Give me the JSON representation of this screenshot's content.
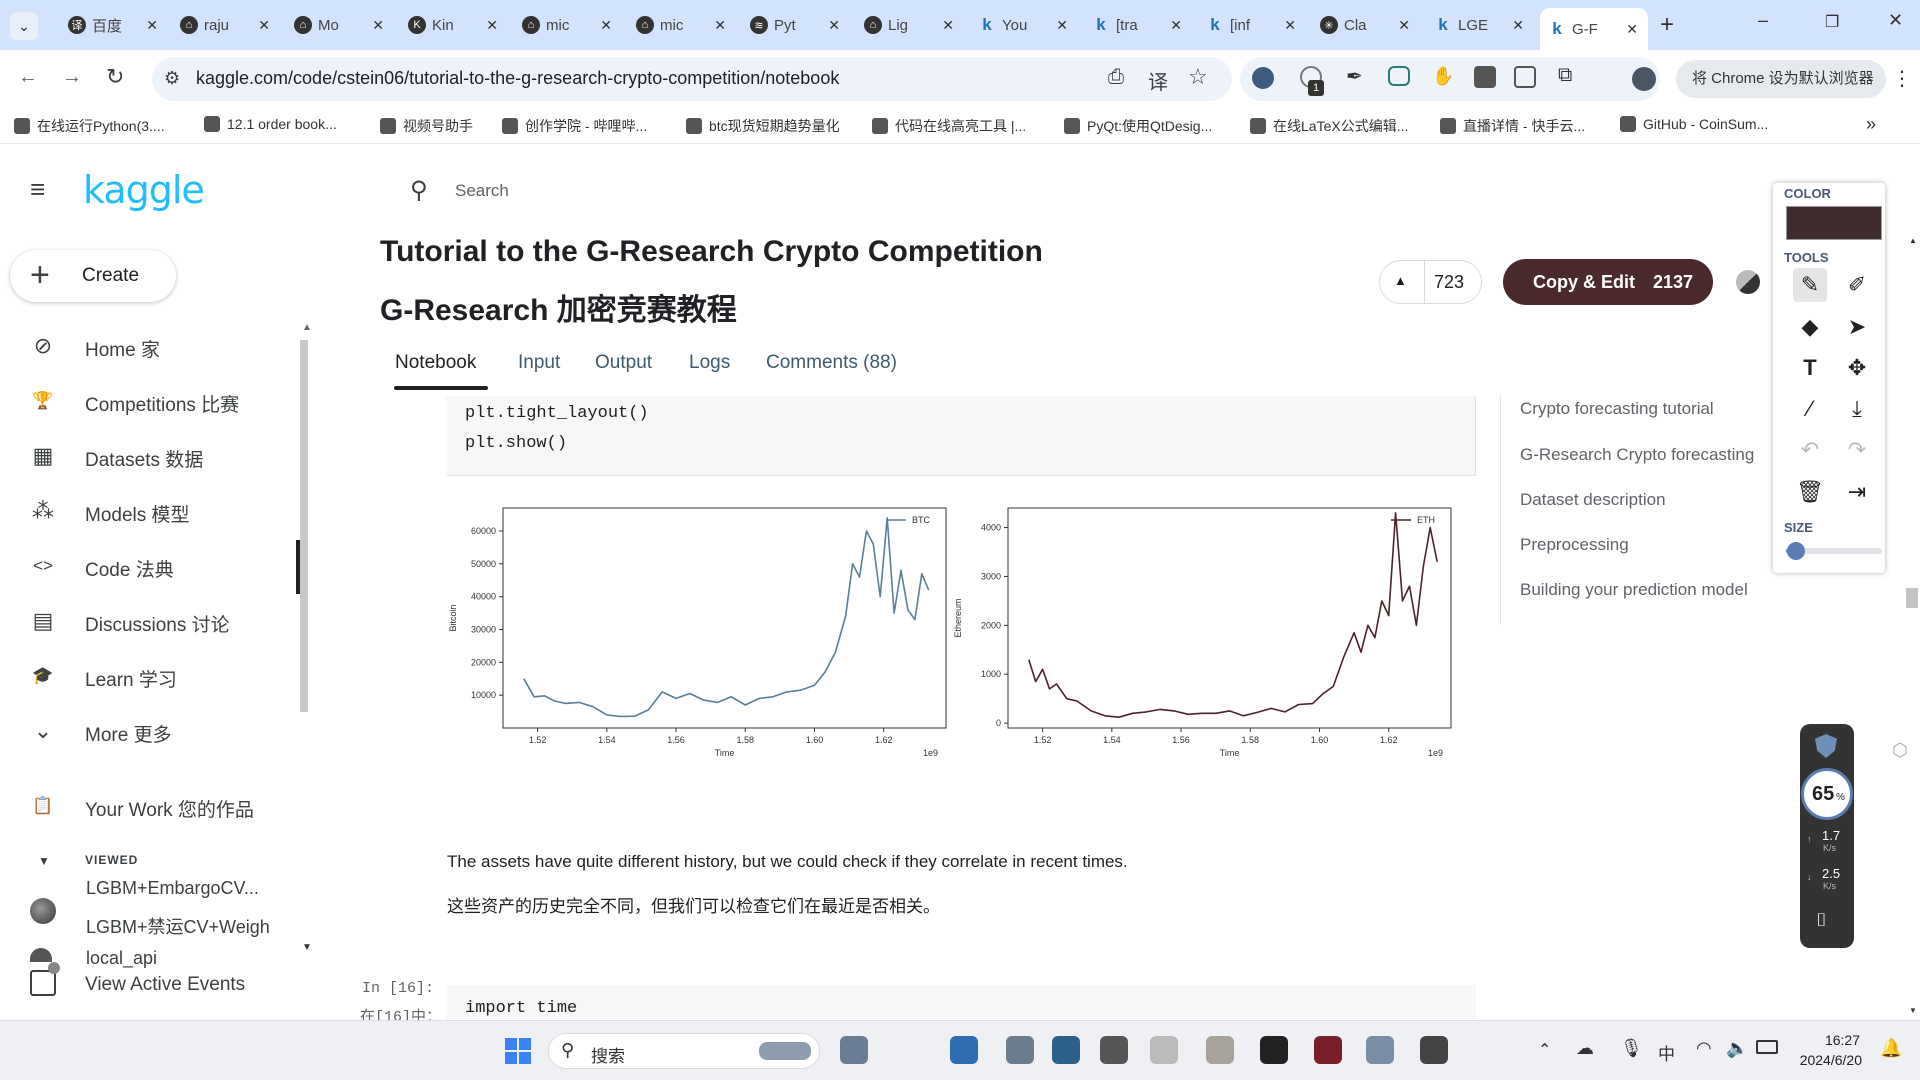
{
  "tabs": [
    {
      "label": "百度",
      "x": 60,
      "fav": "译"
    },
    {
      "label": "raju",
      "x": 172,
      "fav": "⌂"
    },
    {
      "label": "Mo",
      "x": 286,
      "fav": "⌂"
    },
    {
      "label": "Kin",
      "x": 400,
      "fav": "K"
    },
    {
      "label": "mic",
      "x": 514,
      "fav": "⌂"
    },
    {
      "label": "mic",
      "x": 628,
      "fav": "⌂"
    },
    {
      "label": "Pyt",
      "x": 742,
      "fav": "≋"
    },
    {
      "label": "Lig",
      "x": 856,
      "fav": "⌂"
    },
    {
      "label": "You",
      "x": 970,
      "fav": "k"
    },
    {
      "label": "[tra",
      "x": 1084,
      "fav": "k"
    },
    {
      "label": "[inf",
      "x": 1198,
      "fav": "k"
    },
    {
      "label": "Cla",
      "x": 1312,
      "fav": "✳"
    },
    {
      "label": "LGE",
      "x": 1426,
      "fav": "k"
    },
    {
      "label": "G-F",
      "x": 1540,
      "fav": "k",
      "active": true
    }
  ],
  "browser": {
    "url": "kaggle.com/code/cstein06/tutorial-to-the-g-research-crypto-competition/notebook",
    "default_browser": "将 Chrome 设为默认浏览器",
    "ext_badge": "1"
  },
  "bookmarks": [
    {
      "label": "在线运行Python(3....",
      "x": 14
    },
    {
      "label": "12.1 order book...",
      "x": 204
    },
    {
      "label": "视频号助手",
      "x": 380
    },
    {
      "label": "创作学院 - 哔哩哔...",
      "x": 502
    },
    {
      "label": "btc现货短期趋势量化",
      "x": 686
    },
    {
      "label": "代码在线高亮工具 |...",
      "x": 872
    },
    {
      "label": "PyQt:使用QtDesig...",
      "x": 1064
    },
    {
      "label": "在线LaTeX公式编辑...",
      "x": 1250
    },
    {
      "label": "直播详情 - 快手云...",
      "x": 1440
    },
    {
      "label": "GitHub - CoinSum...",
      "x": 1620
    }
  ],
  "kaggle": {
    "logo": "kaggle",
    "search_placeholder": "Search",
    "create": "Create"
  },
  "nav": [
    {
      "label": "Home 家",
      "icon": "⊘",
      "y": 346
    },
    {
      "label": "Competitions 比赛",
      "icon": "🏆",
      "y": 401
    },
    {
      "label": "Datasets 数据",
      "icon": "▦",
      "y": 456
    },
    {
      "label": "Models 模型",
      "icon": "⁂",
      "y": 511
    },
    {
      "label": "Code 法典",
      "icon": "<>",
      "y": 566
    },
    {
      "label": "Discussions 讨论",
      "icon": "▤",
      "y": 621
    },
    {
      "label": "Learn 学习",
      "icon": "🎓",
      "y": 676
    },
    {
      "label": "More 更多",
      "icon": "⌄",
      "y": 731
    },
    {
      "label": "Your Work 您的作品",
      "icon": "📋",
      "y": 806
    }
  ],
  "viewed": {
    "heading": "VIEWED",
    "items": [
      "LGBM+EmbargoCV...",
      "LGBM+禁运CV+Weigh",
      "local_api"
    ]
  },
  "view_active_events": "View Active Events",
  "notebook": {
    "title": "Tutorial to the G-Research Crypto Competition",
    "title_cn": "G-Research 加密竞赛教程",
    "upvotes": "723",
    "copy_edit": "Copy & Edit",
    "copy_count": "2137",
    "tabs": [
      "Notebook",
      "Input",
      "Output",
      "Logs",
      "Comments (88)"
    ],
    "code_lines": [
      "plt.tight_layout()",
      "plt.show()"
    ],
    "text_en": "The assets have quite different history, but we could check if they correlate in recent times.",
    "text_cn": "这些资产的历史完全不同，但我们可以检查它们在最近是否相关。",
    "prompt_en": "In [16]:",
    "prompt_cn": "在[16]中：",
    "next_code": "import time"
  },
  "toc": [
    "Crypto forecasting tutorial",
    "G-Research Crypto forecasting",
    "Dataset description",
    "Preprocessing",
    "Building your prediction model"
  ],
  "annot_panel": {
    "color_label": "COLOR",
    "tools_label": "TOOLS",
    "size_label": "SIZE",
    "color": "#3f2d2f",
    "size_fraction": 0.1
  },
  "net_widget": {
    "percent": "65",
    "pct_sign": "%",
    "up": "1.7",
    "down": "2.5",
    "unit": "K/s"
  },
  "taskbar": {
    "search": "搜索",
    "time": "16:27",
    "date": "2024/6/20",
    "ime": "中"
  },
  "chart_data": [
    {
      "type": "line",
      "legend": "BTC",
      "xlabel": "Time",
      "ylabel": "Bitcoin",
      "x_exponent": "1e9",
      "color": "#5b7f95",
      "xticks": [
        "1.52",
        "1.54",
        "1.56",
        "1.58",
        "1.60",
        "1.62"
      ],
      "xlim": [
        1.51,
        1.638
      ],
      "yticks": [
        "10000",
        "20000",
        "30000",
        "40000",
        "50000",
        "60000"
      ],
      "ylim": [
        0,
        67000
      ],
      "x": [
        1.516,
        1.519,
        1.522,
        1.525,
        1.528,
        1.532,
        1.536,
        1.54,
        1.544,
        1.548,
        1.552,
        1.556,
        1.56,
        1.564,
        1.568,
        1.572,
        1.576,
        1.58,
        1.584,
        1.588,
        1.592,
        1.596,
        1.6,
        1.603,
        1.606,
        1.609,
        1.611,
        1.613,
        1.615,
        1.617,
        1.619,
        1.621,
        1.623,
        1.625,
        1.627,
        1.629,
        1.631,
        1.633
      ],
      "y": [
        15000,
        9500,
        9800,
        8200,
        7500,
        7800,
        6500,
        4000,
        3500,
        3600,
        5500,
        11000,
        9000,
        10500,
        8500,
        7800,
        9500,
        7000,
        9000,
        9500,
        11000,
        11500,
        13000,
        17000,
        23000,
        34000,
        50000,
        46000,
        60000,
        56000,
        40000,
        64000,
        35000,
        48000,
        36000,
        33000,
        47000,
        42000
      ]
    },
    {
      "type": "line",
      "legend": "ETH",
      "xlabel": "Time",
      "ylabel": "Ethereum",
      "x_exponent": "1e9",
      "color": "#4a2429",
      "xticks": [
        "1.52",
        "1.54",
        "1.56",
        "1.58",
        "1.60",
        "1.62"
      ],
      "xlim": [
        1.51,
        1.638
      ],
      "yticks": [
        "0",
        "1000",
        "2000",
        "3000",
        "4000"
      ],
      "ylim": [
        -100,
        4400
      ],
      "x": [
        1.516,
        1.518,
        1.52,
        1.522,
        1.524,
        1.527,
        1.53,
        1.534,
        1.538,
        1.542,
        1.546,
        1.55,
        1.554,
        1.558,
        1.562,
        1.566,
        1.57,
        1.574,
        1.578,
        1.582,
        1.586,
        1.59,
        1.594,
        1.598,
        1.601,
        1.604,
        1.607,
        1.61,
        1.612,
        1.614,
        1.616,
        1.618,
        1.62,
        1.622,
        1.624,
        1.626,
        1.628,
        1.63,
        1.632,
        1.634
      ],
      "y": [
        1300,
        850,
        1100,
        700,
        800,
        500,
        450,
        250,
        150,
        120,
        200,
        230,
        280,
        250,
        180,
        200,
        200,
        250,
        150,
        220,
        300,
        230,
        380,
        400,
        600,
        750,
        1350,
        1850,
        1450,
        2000,
        1750,
        2500,
        2200,
        4300,
        2500,
        2800,
        2000,
        3200,
        4000,
        3300
      ]
    }
  ]
}
